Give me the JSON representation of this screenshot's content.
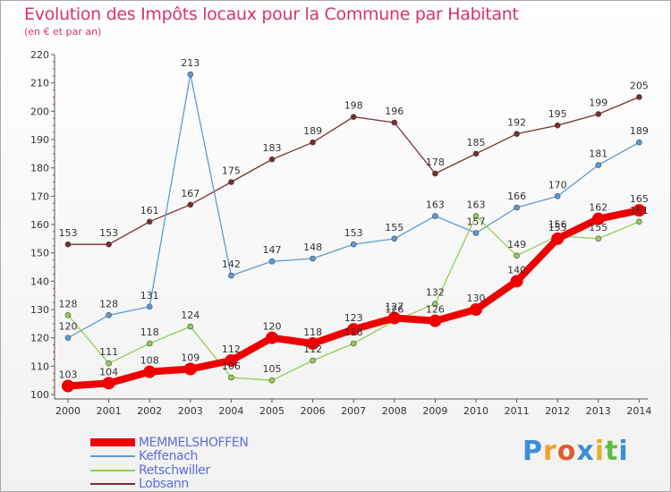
{
  "title": "Evolution des Impôts locaux pour la Commune par Habitant",
  "subtitle": "(en € et par an)",
  "logo": {
    "letters": [
      "P",
      "r",
      "o",
      "x",
      "i",
      "t",
      "i"
    ],
    "colors": [
      "#3a8fd8",
      "#f2a130",
      "#e45a2a",
      "#3a8fd8",
      "#e4b12a",
      "#5bbf3b",
      "#3a8fd8"
    ]
  },
  "chart_data": {
    "type": "line",
    "x": [
      "2000",
      "2001",
      "2002",
      "2003",
      "2004",
      "2005",
      "2006",
      "2007",
      "2008",
      "2009",
      "2010",
      "2011",
      "2012",
      "2013",
      "2014"
    ],
    "ylim": [
      100,
      220
    ],
    "yticks": [
      100,
      110,
      120,
      130,
      140,
      150,
      160,
      170,
      180,
      190,
      200,
      210,
      220
    ],
    "grid": false,
    "legend_position": "bottom-left",
    "series": [
      {
        "name": "MEMMELSHOFFEN",
        "color": "#ee0000",
        "values": [
          103,
          104,
          108,
          109,
          112,
          120,
          118,
          123,
          127,
          126,
          130,
          140,
          155,
          162,
          165
        ]
      },
      {
        "name": "Keffenach",
        "color": "#5b9bd5",
        "values": [
          120,
          128,
          131,
          213,
          142,
          147,
          148,
          153,
          155,
          163,
          157,
          166,
          170,
          181,
          189
        ]
      },
      {
        "name": "Retschwiller",
        "color": "#92d050",
        "values": [
          128,
          111,
          118,
          124,
          106,
          105,
          112,
          118,
          126,
          132,
          163,
          149,
          156,
          155,
          161
        ]
      },
      {
        "name": "Lobsann",
        "color": "#7b2c2c",
        "values": [
          153,
          153,
          161,
          167,
          175,
          183,
          189,
          198,
          196,
          178,
          185,
          192,
          195,
          199,
          205
        ]
      }
    ],
    "labels": [
      {
        "x": "2000",
        "text": "103"
      },
      {
        "x": "2001",
        "text": "104"
      },
      {
        "x": "2002",
        "text": "108"
      },
      {
        "x": "2003",
        "text": "109"
      },
      {
        "x": "2004",
        "text": "112"
      },
      {
        "x": "2005",
        "text": "120"
      },
      {
        "x": "2006",
        "text": "118"
      },
      {
        "x": "2007",
        "text": "123"
      },
      {
        "x": "2008",
        "text": "127"
      },
      {
        "x": "2009",
        "text": "126"
      },
      {
        "x": "2010",
        "text": "130"
      },
      {
        "x": "2011",
        "text": "140"
      },
      {
        "x": "2012",
        "text": "155"
      },
      {
        "x": "2013",
        "text": "162"
      },
      {
        "x": "2014",
        "text": "165"
      },
      {
        "x": "2000",
        "text": "120"
      },
      {
        "x": "2001",
        "text": "128"
      },
      {
        "x": "2002",
        "text": "131"
      },
      {
        "x": "2003",
        "text": "213"
      },
      {
        "x": "2004",
        "text": "142"
      },
      {
        "x": "2005",
        "text": "147"
      },
      {
        "x": "2006",
        "text": "148"
      },
      {
        "x": "2007",
        "text": "153"
      },
      {
        "x": "2008",
        "text": "155"
      },
      {
        "x": "2009",
        "text": "163"
      },
      {
        "x": "2010",
        "text": "157"
      },
      {
        "x": "2011",
        "text": "166"
      },
      {
        "x": "2012",
        "text": "170"
      },
      {
        "x": "2013",
        "text": "181"
      },
      {
        "x": "2014",
        "text": "189"
      },
      {
        "x": "2000",
        "text": "128"
      },
      {
        "x": "2001",
        "text": "111"
      },
      {
        "x": "2002",
        "text": "118"
      },
      {
        "x": "2003",
        "text": "124"
      },
      {
        "x": "2004",
        "text": "106"
      },
      {
        "x": "2005",
        "text": "105"
      },
      {
        "x": "2006",
        "text": "112"
      },
      {
        "x": "2007",
        "text": "118"
      },
      {
        "x": "2008",
        "text": "126"
      },
      {
        "x": "2009",
        "text": "132"
      },
      {
        "x": "2010",
        "text": "163"
      },
      {
        "x": "2011",
        "text": "149"
      },
      {
        "x": "2012",
        "text": "156"
      },
      {
        "x": "2013",
        "text": "155"
      },
      {
        "x": "2014",
        "text": "161"
      },
      {
        "x": "2000",
        "text": "153"
      },
      {
        "x": "2001",
        "text": "153"
      },
      {
        "x": "2002",
        "text": "161"
      },
      {
        "x": "2003",
        "text": "167"
      },
      {
        "x": "2004",
        "text": "175"
      },
      {
        "x": "2005",
        "text": "183"
      },
      {
        "x": "2006",
        "text": "189"
      },
      {
        "x": "2007",
        "text": "198"
      },
      {
        "x": "2008",
        "text": "196"
      },
      {
        "x": "2009",
        "text": "178"
      },
      {
        "x": "2010",
        "text": "185"
      },
      {
        "x": "2011",
        "text": "192"
      },
      {
        "x": "2012",
        "text": "195"
      },
      {
        "x": "2013",
        "text": "199"
      },
      {
        "x": "2014",
        "text": "205"
      }
    ]
  }
}
